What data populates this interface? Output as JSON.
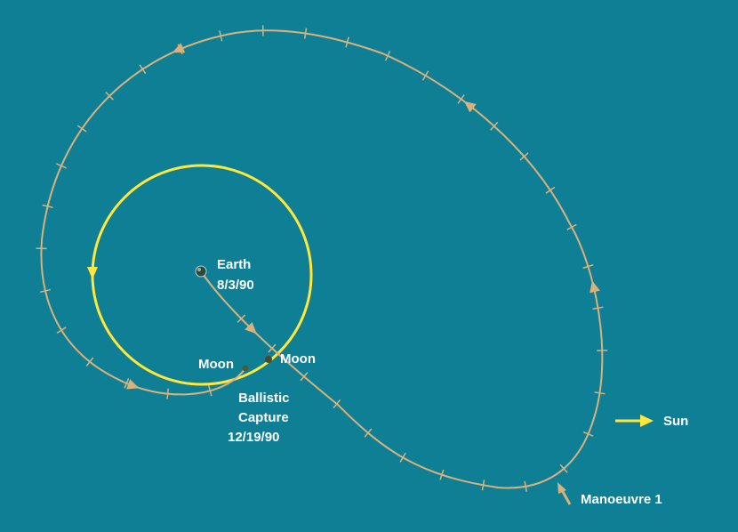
{
  "colors": {
    "background": "#0f7f96",
    "trajectory": "#d8b27c",
    "moon_orbit": "#ffe83a",
    "sun_arrow": "#ffe83a",
    "label": "#ffffff"
  },
  "labels": {
    "earth_name": "Earth",
    "launch_date": "8/3/90",
    "moon_capture": "Moon",
    "moon_crossing": "Moon",
    "capture_line1": "Ballistic",
    "capture_line2": "Capture",
    "capture_date": "12/19/90",
    "sun": "Sun",
    "manoeuvre": "Manoeuvre 1"
  },
  "icons": {
    "earth": "earth-icon",
    "sun_direction": "arrow-right-icon",
    "manoeuvre_pointer": "arrow-up-icon"
  }
}
